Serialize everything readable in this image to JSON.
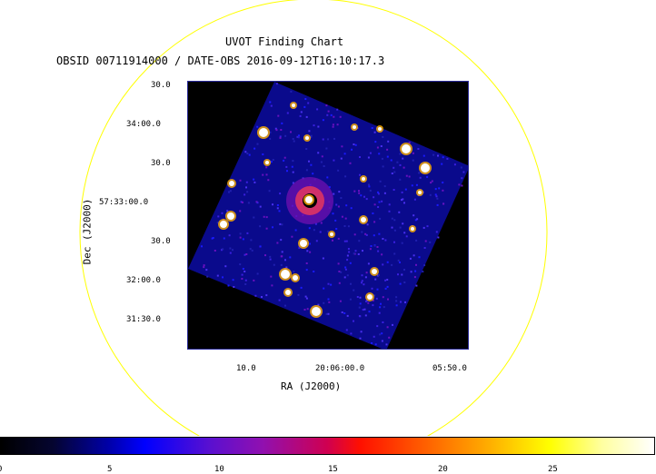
{
  "chart_data": {
    "type": "heatmap",
    "title": "UVOT Finding Chart",
    "subtitle": "OBSID 00711914000 / DATE-OBS 2016-09-12T16:10:17.3",
    "xlabel": "RA (J2000)",
    "ylabel": "Dec (J2000)",
    "x_ticks": [
      "10.0",
      "20:06:00.0",
      "05:50.0"
    ],
    "y_ticks": [
      "30.0",
      "34:00.0",
      "30.0",
      "57:33:00.0",
      "30.0",
      "32:00.0",
      "31:30.0"
    ],
    "colorbar": {
      "ticks": [
        "0",
        "5",
        "10",
        "15",
        "20",
        "25"
      ],
      "range": [
        0,
        29
      ],
      "colormap": "heat (black-blue-purple-red-yellow-white)"
    },
    "colors": {
      "circle": "#ffff00",
      "image_background": "#0a0a8c",
      "source": "#ffffff"
    }
  }
}
